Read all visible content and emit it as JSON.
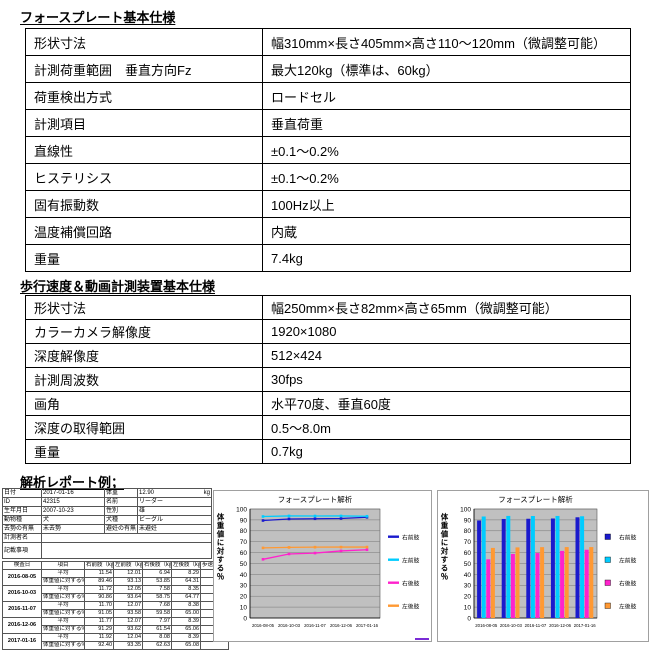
{
  "sections": {
    "force_plate": {
      "title": "フォースプレート基本仕様",
      "rows": [
        {
          "label": "形状寸法",
          "value": "幅310mm×長さ405mm×高さ110～120mm（微調整可能）"
        },
        {
          "label": "計測荷重範囲　垂直方向Fz",
          "value": "最大120kg（標準は、60kg）"
        },
        {
          "label": "荷重検出方式",
          "value": "ロードセル"
        },
        {
          "label": "計測項目",
          "value": "垂直荷重"
        },
        {
          "label": "直線性",
          "value": "±0.1～0.2%"
        },
        {
          "label": "ヒステリシス",
          "value": "±0.1～0.2%"
        },
        {
          "label": "固有振動数",
          "value": "100Hz以上"
        },
        {
          "label": "温度補償回路",
          "value": "内蔵"
        },
        {
          "label": "重量",
          "value": "7.4kg"
        }
      ]
    },
    "gait_device": {
      "title": "歩行速度＆動画計測装置基本仕様",
      "rows": [
        {
          "label": "形状寸法",
          "value": "幅250mm×長さ82mm×高さ65mm（微調整可能）"
        },
        {
          "label": "カラーカメラ解像度",
          "value": "1920×1080"
        },
        {
          "label": "深度解像度",
          "value": "512×424"
        },
        {
          "label": "計測周波数",
          "value": "30fps"
        },
        {
          "label": "画角",
          "value": "水平70度、垂直60度"
        },
        {
          "label": "深度の取得範囲",
          "value": "0.5～8.0m"
        },
        {
          "label": "重量",
          "value": "0.7kg"
        }
      ]
    },
    "report": {
      "title": "解析レポート例；"
    }
  },
  "report": {
    "subject_info": {
      "rows": [
        {
          "l1": "日付",
          "v1": "2017-01-16",
          "l2": "体重",
          "v2": "12.90",
          "unit": "kg"
        },
        {
          "l1": "ID",
          "v1": "42315",
          "l2": "名前",
          "v2": "リーダー",
          "unit": ""
        },
        {
          "l1": "生年月日",
          "v1": "2007-10-23",
          "l2": "性別",
          "v2": "雄",
          "unit": ""
        },
        {
          "l1": "動物種",
          "v1": "犬",
          "l2": "犬種",
          "v2": "ビーグル",
          "unit": ""
        },
        {
          "l1": "去勢の有無",
          "v1": "未去勢",
          "l2": "避妊の有無",
          "v2": "未避妊",
          "unit": ""
        }
      ],
      "measurer_label": "計測者名",
      "notes_label": "記載事項"
    },
    "measurements": {
      "headers": [
        "検査日",
        "項目",
        "右前肢（㎏）",
        "左前肢（㎏）",
        "右後肢（㎏）",
        "左後肢（㎏）",
        "歩速（m/s）"
      ],
      "row_labels": [
        "平均",
        "体重値に対する%"
      ],
      "groups": [
        {
          "date": "2016-08-05",
          "avg": [
            "11.54",
            "12.01",
            "6.94",
            "8.29"
          ],
          "pct": [
            "89.46",
            "93.13",
            "53.85",
            "64.31"
          ],
          "speed": "1.97"
        },
        {
          "date": "2016-10-03",
          "avg": [
            "11.72",
            "12.05",
            "7.58",
            "8.35"
          ],
          "pct": [
            "90.86",
            "93.64",
            "58.75",
            "64.77"
          ],
          "speed": "2.00"
        },
        {
          "date": "2016-11-07",
          "avg": [
            "11.70",
            "12.07",
            "7.68",
            "8.38"
          ],
          "pct": [
            "91.05",
            "93.58",
            "59.58",
            "65.00"
          ],
          "speed": "1.97"
        },
        {
          "date": "2016-12-06",
          "avg": [
            "11.77",
            "12.07",
            "7.97",
            "8.39"
          ],
          "pct": [
            "91.29",
            "93.62",
            "61.54",
            "65.06"
          ],
          "speed": "1.96"
        },
        {
          "date": "2017-01-16",
          "avg": [
            "11.92",
            "12.04",
            "8.08",
            "8.39"
          ],
          "pct": [
            "92.40",
            "93.35",
            "62.63",
            "65.08"
          ],
          "speed": "2.03"
        }
      ]
    }
  },
  "chart_data": [
    {
      "type": "line",
      "title": "フォースプレート解析",
      "ylabel": "体重値に対する％",
      "x": [
        "2016-08-05",
        "2016-10-03",
        "2016-11-07",
        "2016-12-06",
        "2017-01-16"
      ],
      "ylim": [
        0,
        100
      ],
      "ytick_step": 10,
      "grid": true,
      "legend_position": "right",
      "plot_bg": "#c0c0c0",
      "series": [
        {
          "name": "右前肢",
          "color": "#1a1acd",
          "values": [
            89.46,
            90.86,
            91.05,
            91.29,
            92.4
          ]
        },
        {
          "name": "左前肢",
          "color": "#00ccff",
          "values": [
            93.13,
            93.64,
            93.58,
            93.62,
            93.35
          ]
        },
        {
          "name": "右後肢",
          "color": "#ff22cc",
          "values": [
            53.85,
            58.75,
            59.58,
            61.54,
            62.63
          ]
        },
        {
          "name": "左後肢",
          "color": "#ff9933",
          "values": [
            64.31,
            64.77,
            65.0,
            65.06,
            65.08
          ]
        }
      ]
    },
    {
      "type": "bar",
      "title": "フォースプレート解析",
      "ylabel": "体重値に対する％",
      "x": [
        "2016-08-05",
        "2016-10-03",
        "2016-11-07",
        "2016-12-06",
        "2017-01-16"
      ],
      "ylim": [
        0,
        100
      ],
      "ytick_step": 10,
      "grid": true,
      "legend_position": "right",
      "plot_bg": "#c0c0c0",
      "series": [
        {
          "name": "右前肢",
          "color": "#1a1acd",
          "values": [
            89.46,
            90.86,
            91.05,
            91.29,
            92.4
          ]
        },
        {
          "name": "左前肢",
          "color": "#00ccff",
          "values": [
            93.13,
            93.64,
            93.58,
            93.62,
            93.35
          ]
        },
        {
          "name": "右後肢",
          "color": "#ff22cc",
          "values": [
            53.85,
            58.75,
            59.58,
            61.54,
            62.63
          ]
        },
        {
          "name": "左後肢",
          "color": "#ff9933",
          "values": [
            64.31,
            64.77,
            65.0,
            65.06,
            65.08
          ]
        }
      ]
    }
  ]
}
